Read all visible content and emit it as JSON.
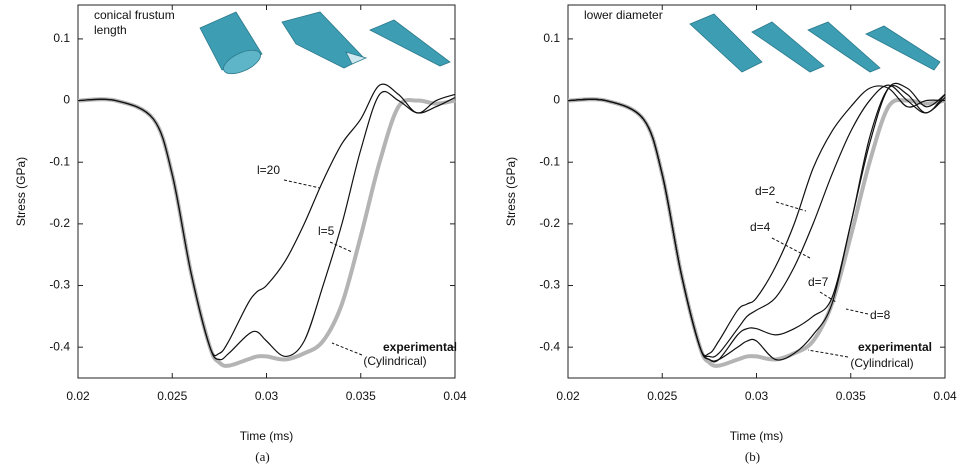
{
  "chart_data": [
    {
      "type": "line",
      "title": [
        "conical frustum",
        "length"
      ],
      "xlabel": "Time (ms)",
      "ylabel": "Stress (GPa)",
      "caption": "(a)",
      "x": [
        0.02,
        0.022,
        0.024,
        0.025,
        0.026,
        0.027,
        0.0275,
        0.028,
        0.029,
        0.0295,
        0.03,
        0.031,
        0.032,
        0.033,
        0.034,
        0.035,
        0.036,
        0.037,
        0.038,
        0.039,
        0.04
      ],
      "series": [
        {
          "name": "experimental",
          "color": "#b4b4b4",
          "linewidth": 4,
          "bold": true,
          "values": [
            0,
            0,
            -0.03,
            -0.12,
            -0.28,
            -0.4,
            -0.425,
            -0.43,
            -0.42,
            -0.415,
            -0.415,
            -0.42,
            -0.41,
            -0.39,
            -0.33,
            -0.22,
            -0.1,
            -0.01,
            0,
            -0.005,
            0
          ]
        },
        {
          "name": "l=5",
          "color": "#111111",
          "linewidth": 1.2,
          "values": [
            0,
            0,
            -0.03,
            -0.12,
            -0.28,
            -0.4,
            -0.42,
            -0.41,
            -0.38,
            -0.375,
            -0.39,
            -0.415,
            -0.39,
            -0.3,
            -0.2,
            -0.08,
            0.01,
            0,
            -0.02,
            -0.01,
            0.005
          ]
        },
        {
          "name": "l=20",
          "color": "#111111",
          "linewidth": 1.2,
          "values": [
            0,
            0,
            -0.03,
            -0.12,
            -0.28,
            -0.4,
            -0.41,
            -0.39,
            -0.33,
            -0.31,
            -0.3,
            -0.26,
            -0.2,
            -0.13,
            -0.07,
            -0.03,
            0.025,
            0.01,
            -0.02,
            0,
            0.01
          ]
        }
      ],
      "annotations": [
        "(Cylindrical)"
      ],
      "xlim": [
        0.02,
        0.04
      ],
      "ylim": [
        -0.45,
        0.155
      ],
      "xticks": [
        0.02,
        0.025,
        0.03,
        0.035,
        0.04
      ],
      "yticks": [
        0.1,
        0,
        -0.1,
        -0.2,
        -0.3,
        -0.4
      ]
    },
    {
      "type": "line",
      "title": [
        "lower diameter"
      ],
      "xlabel": "Time (ms)",
      "ylabel": "Stress (GPa)",
      "caption": "(b)",
      "x": [
        0.02,
        0.022,
        0.024,
        0.025,
        0.026,
        0.027,
        0.0275,
        0.028,
        0.029,
        0.0295,
        0.03,
        0.031,
        0.032,
        0.033,
        0.034,
        0.035,
        0.036,
        0.037,
        0.038,
        0.039,
        0.04
      ],
      "series": [
        {
          "name": "experimental",
          "color": "#b4b4b4",
          "linewidth": 4,
          "bold": true,
          "values": [
            0,
            0,
            -0.03,
            -0.12,
            -0.28,
            -0.4,
            -0.425,
            -0.43,
            -0.42,
            -0.415,
            -0.415,
            -0.42,
            -0.41,
            -0.39,
            -0.33,
            -0.22,
            -0.1,
            -0.01,
            0,
            -0.005,
            0
          ]
        },
        {
          "name": "d=8",
          "color": "#111111",
          "linewidth": 1.2,
          "values": [
            0,
            0,
            -0.03,
            -0.12,
            -0.28,
            -0.4,
            -0.42,
            -0.42,
            -0.4,
            -0.39,
            -0.39,
            -0.42,
            -0.41,
            -0.38,
            -0.33,
            -0.2,
            -0.07,
            0.02,
            0.02,
            -0.01,
            0.01
          ]
        },
        {
          "name": "d=7",
          "color": "#111111",
          "linewidth": 1.2,
          "values": [
            0,
            0,
            -0.03,
            -0.12,
            -0.28,
            -0.4,
            -0.42,
            -0.42,
            -0.38,
            -0.37,
            -0.37,
            -0.38,
            -0.37,
            -0.35,
            -0.32,
            -0.2,
            -0.06,
            0.02,
            0.01,
            -0.02,
            0.01
          ]
        },
        {
          "name": "d=4",
          "color": "#111111",
          "linewidth": 1.2,
          "values": [
            0,
            0,
            -0.03,
            -0.12,
            -0.28,
            -0.4,
            -0.415,
            -0.41,
            -0.37,
            -0.35,
            -0.34,
            -0.32,
            -0.27,
            -0.2,
            -0.12,
            -0.05,
            0,
            0.025,
            0,
            -0.02,
            0.005
          ]
        },
        {
          "name": "d=2",
          "color": "#111111",
          "linewidth": 1.2,
          "values": [
            0,
            0,
            -0.03,
            -0.12,
            -0.28,
            -0.4,
            -0.41,
            -0.39,
            -0.34,
            -0.33,
            -0.32,
            -0.27,
            -0.2,
            -0.11,
            -0.05,
            -0.01,
            0.02,
            0.02,
            -0.01,
            0,
            0
          ]
        }
      ],
      "annotations": [
        "(Cylindrical)"
      ],
      "xlim": [
        0.02,
        0.04
      ],
      "ylim": [
        -0.45,
        0.155
      ],
      "xticks": [
        0.02,
        0.025,
        0.03,
        0.035,
        0.04
      ],
      "yticks": [
        0.1,
        0,
        -0.1,
        -0.2,
        -0.3,
        -0.4
      ]
    }
  ]
}
